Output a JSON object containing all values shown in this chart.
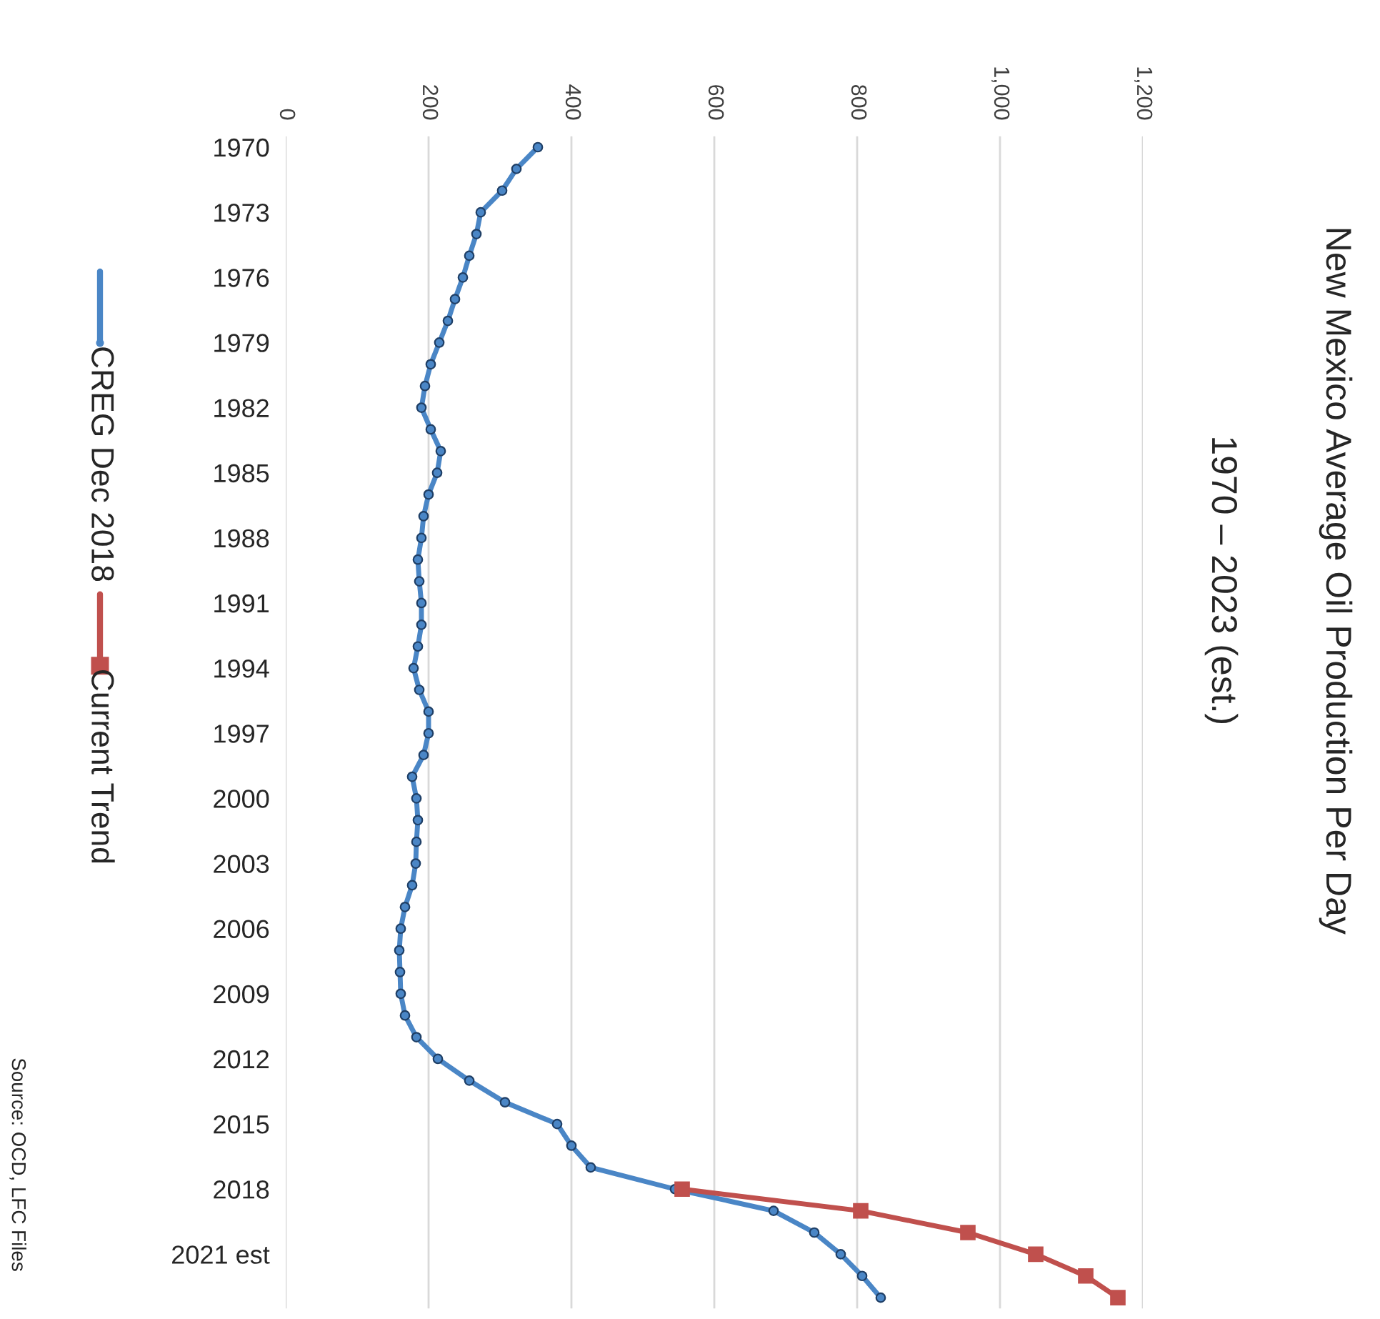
{
  "chart_data": {
    "type": "line",
    "orientation": "horizontal",
    "title": "New Mexico Average Oil Production Per Day",
    "subtitle": "1970 – 2023 (est.)",
    "categories": [
      "1970",
      null,
      null,
      "1973",
      null,
      null,
      "1976",
      null,
      null,
      "1979",
      null,
      null,
      "1982",
      null,
      null,
      "1985",
      null,
      null,
      "1988",
      null,
      null,
      "1991",
      null,
      null,
      "1994",
      null,
      null,
      "1997",
      null,
      null,
      "2000",
      null,
      null,
      "2003",
      null,
      null,
      "2006",
      null,
      null,
      "2009",
      null,
      null,
      "2012",
      null,
      null,
      "2015",
      null,
      null,
      "2018",
      null,
      null,
      "2021 est",
      null,
      null
    ],
    "series": [
      {
        "name": "CREG Dec 2018",
        "color": "#4a86c6",
        "marker": "circle",
        "values": [
          353,
          323,
          303,
          273,
          267,
          257,
          248,
          237,
          227,
          215,
          203,
          195,
          190,
          203,
          217,
          212,
          200,
          193,
          190,
          185,
          187,
          190,
          190,
          185,
          179,
          187,
          200,
          200,
          193,
          177,
          183,
          185,
          183,
          182,
          177,
          167,
          161,
          159,
          160,
          161,
          167,
          183,
          213,
          257,
          307,
          380,
          400,
          427,
          545,
          683,
          740,
          777,
          807,
          833
        ]
      },
      {
        "name": "Current Trend",
        "color": "#c0504d",
        "marker": "square",
        "values": [
          null,
          null,
          null,
          null,
          null,
          null,
          null,
          null,
          null,
          null,
          null,
          null,
          null,
          null,
          null,
          null,
          null,
          null,
          null,
          null,
          null,
          null,
          null,
          null,
          null,
          null,
          null,
          null,
          null,
          null,
          null,
          null,
          null,
          null,
          null,
          null,
          null,
          null,
          null,
          null,
          null,
          null,
          null,
          null,
          null,
          null,
          null,
          null,
          555,
          805,
          955,
          1050,
          1120,
          1165
        ]
      }
    ],
    "xlim": [
      0,
      1200
    ],
    "xticks": [
      0,
      200,
      400,
      600,
      800,
      {
        "value": 1000,
        "label": "1,000"
      },
      {
        "value": 1200,
        "label": "1,200"
      }
    ],
    "grid": "x",
    "legend": "left",
    "line_style": "solid",
    "annotations": [
      "Source: OCD, LFC Files"
    ]
  }
}
